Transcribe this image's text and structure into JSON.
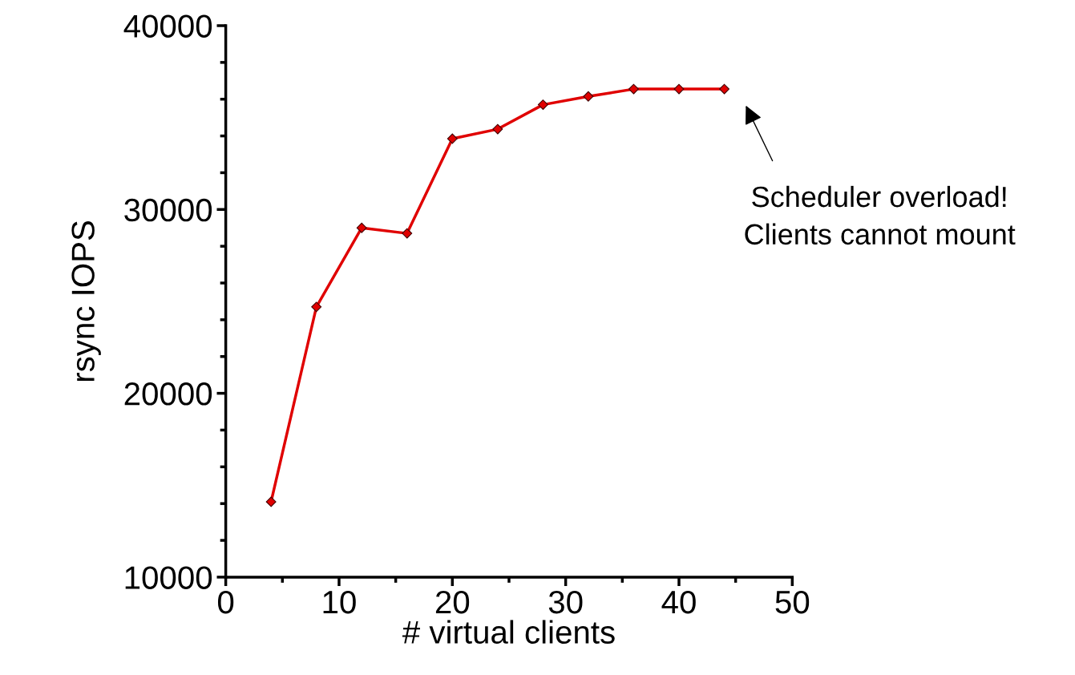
{
  "chart_data": {
    "type": "line",
    "xlabel": "# virtual clients",
    "ylabel": "rsync IOPS",
    "x": [
      4,
      8,
      12,
      16,
      20,
      24,
      28,
      32,
      36,
      40,
      44
    ],
    "series": [
      {
        "color": "#e00000",
        "values": [
          14100,
          24700,
          29000,
          28700,
          33850,
          34370,
          35700,
          36150,
          36550,
          36550,
          36550
        ]
      }
    ],
    "marker": "diamond",
    "line_style": "solid",
    "grid": false,
    "legend": false,
    "xlim": [
      0,
      50
    ],
    "ylim": [
      10000,
      40000
    ],
    "xticks": [
      0,
      {
        "value": 5,
        "label": null
      },
      10,
      {
        "value": 15,
        "label": null
      },
      20,
      {
        "value": 25,
        "label": null
      },
      30,
      {
        "value": 35,
        "label": null
      },
      40,
      {
        "value": 45,
        "label": null
      },
      50
    ],
    "yticks": [
      10000,
      {
        "value": 12000,
        "label": null
      },
      {
        "value": 14000,
        "label": null
      },
      {
        "value": 16000,
        "label": null
      },
      {
        "value": 18000,
        "label": null
      },
      20000,
      {
        "value": 22000,
        "label": null
      },
      {
        "value": 24000,
        "label": null
      },
      {
        "value": 26000,
        "label": null
      },
      {
        "value": 28000,
        "label": null
      },
      30000,
      {
        "value": 32000,
        "label": null
      },
      {
        "value": 34000,
        "label": null
      },
      {
        "value": 36000,
        "label": null
      },
      {
        "value": 38000,
        "label": null
      },
      40000
    ],
    "annotations": [
      "Scheduler overload!\nClients cannot mount"
    ]
  }
}
